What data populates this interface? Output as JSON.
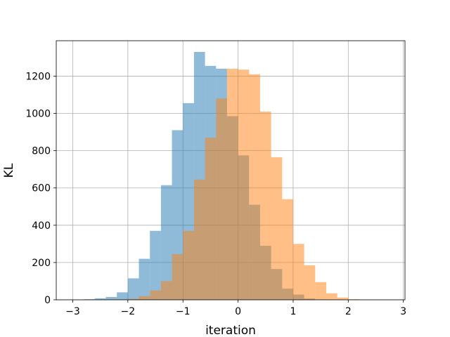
{
  "chart_data": {
    "type": "bar",
    "subtype": "histogram-overlay",
    "title": "",
    "xlabel": "iteration",
    "ylabel": "KL",
    "xlim": [
      -3.3,
      3.03
    ],
    "ylim": [
      0,
      1390
    ],
    "xticks": [
      -3,
      -2,
      -1,
      0,
      1,
      2,
      3
    ],
    "xtick_labels": [
      "−3",
      "−2",
      "−1",
      "0",
      "1",
      "2",
      "3"
    ],
    "yticks": [
      0,
      200,
      400,
      600,
      800,
      1000,
      1200
    ],
    "ytick_labels": [
      "0",
      "200",
      "400",
      "600",
      "800",
      "1000",
      "1200"
    ],
    "grid": true,
    "legend": "none",
    "series": [
      {
        "color": "#1f77b4",
        "opacity": 0.5,
        "bin_edges": [
          -2.8,
          -2.6,
          -2.4,
          -2.2,
          -2.0,
          -1.8,
          -1.6,
          -1.4,
          -1.2,
          -1.0,
          -0.8,
          -0.6,
          -0.4,
          -0.2,
          0.0,
          0.2,
          0.4,
          0.6,
          0.8,
          1.0,
          1.2,
          1.4,
          1.6
        ],
        "counts": [
          3,
          8,
          15,
          40,
          115,
          220,
          370,
          615,
          910,
          1055,
          1330,
          1255,
          1240,
          985,
          775,
          510,
          290,
          165,
          60,
          28,
          7,
          2
        ]
      },
      {
        "color": "#ff7f0e",
        "opacity": 0.5,
        "bin_edges": [
          -2.2,
          -2.0,
          -1.8,
          -1.6,
          -1.4,
          -1.2,
          -1.0,
          -0.8,
          -0.6,
          -0.4,
          -0.2,
          0.0,
          0.2,
          0.4,
          0.6,
          0.8,
          1.0,
          1.2,
          1.4,
          1.6,
          1.8,
          2.0,
          2.2
        ],
        "counts": [
          2,
          5,
          20,
          50,
          100,
          245,
          370,
          645,
          870,
          1080,
          1240,
          1235,
          1210,
          1010,
          765,
          540,
          300,
          185,
          95,
          35,
          12,
          3
        ]
      }
    ]
  }
}
